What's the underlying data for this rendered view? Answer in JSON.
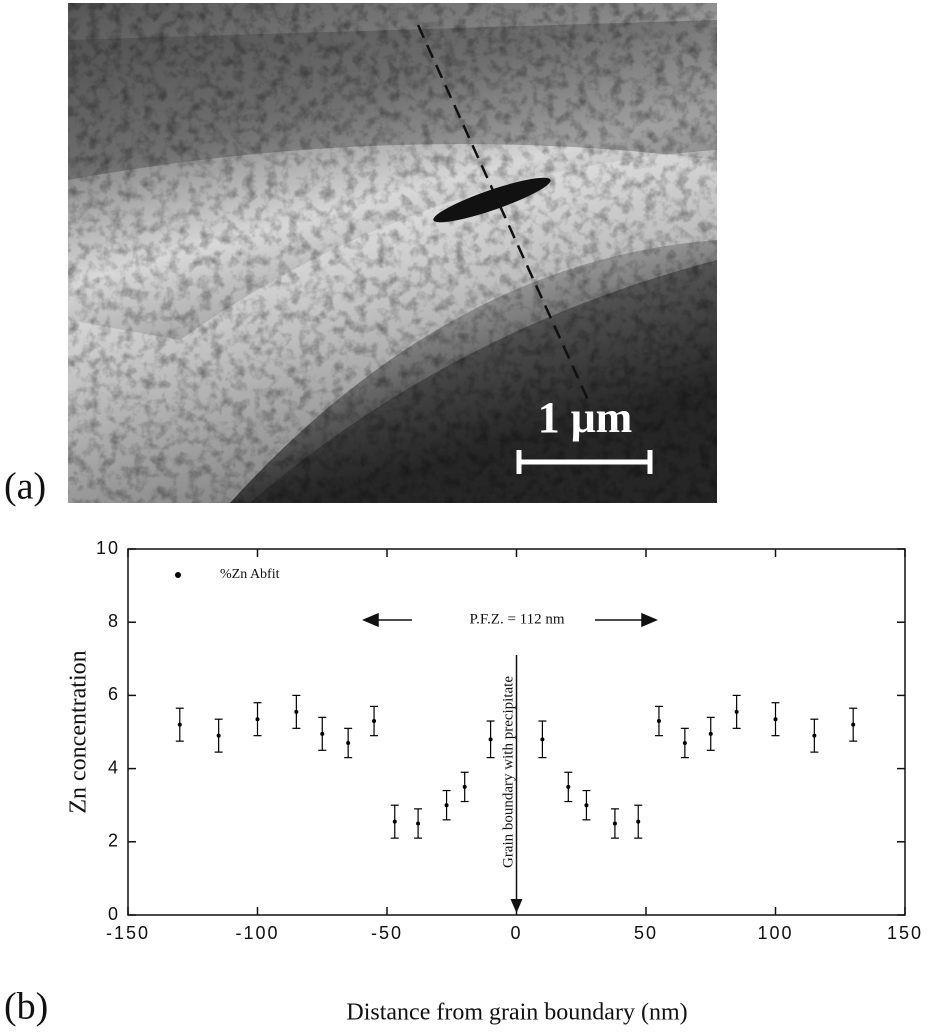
{
  "panel_a": {
    "label": "(a)",
    "scale_bar": "1 μm"
  },
  "chart_data": {
    "type": "errorbar",
    "panel_label": "(b)",
    "xlabel": "Distance from grain boundary (nm)",
    "ylabel": "Zn concentration",
    "annotations": {
      "pfz": "P.F.Z. = 112 nm",
      "boundary": "Grain boundary with precipitate"
    },
    "x": [
      -130,
      -115,
      -100,
      -85,
      -75,
      -65,
      -55,
      -47,
      -38,
      -27,
      -20,
      -10,
      10,
      20,
      27,
      38,
      47,
      55,
      65,
      75,
      85,
      100,
      115,
      130
    ],
    "series": [
      {
        "name": "%Zn Abfit",
        "color": "#000000",
        "values": [
          5.2,
          4.9,
          5.35,
          5.55,
          4.95,
          4.7,
          5.3,
          2.55,
          2.5,
          3.0,
          3.5,
          4.8,
          4.8,
          3.5,
          3.0,
          2.5,
          2.55,
          5.3,
          4.7,
          4.95,
          5.55,
          5.35,
          4.9,
          5.2
        ],
        "errors": [
          0.45,
          0.45,
          0.45,
          0.45,
          0.45,
          0.4,
          0.4,
          0.45,
          0.4,
          0.4,
          0.4,
          0.5,
          0.5,
          0.4,
          0.4,
          0.4,
          0.45,
          0.4,
          0.4,
          0.45,
          0.45,
          0.45,
          0.45,
          0.45
        ]
      }
    ],
    "xlim": [
      -150,
      150
    ],
    "xticks": [
      -150,
      -100,
      -50,
      0,
      50,
      100,
      150
    ],
    "ylim": [
      0,
      10
    ],
    "yticks": [
      0,
      2,
      4,
      6,
      8,
      10
    ],
    "legend": "upper left"
  }
}
